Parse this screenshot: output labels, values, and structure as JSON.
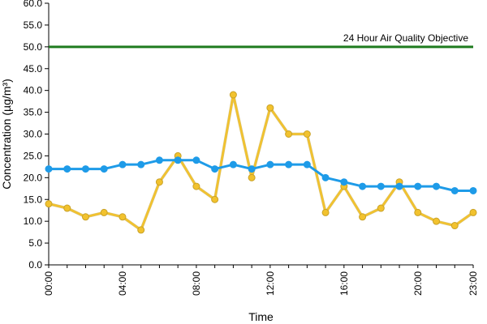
{
  "chart_data": {
    "type": "line",
    "xlabel": "Time",
    "ylabel": "Concentration (µg/m³)",
    "ylim": [
      0,
      60
    ],
    "yticks": [
      "0.0",
      "5.0",
      "10.0",
      "15.0",
      "20.0",
      "25.0",
      "30.0",
      "35.0",
      "40.0",
      "45.0",
      "50.0",
      "55.0",
      "60.0"
    ],
    "xlim": [
      0,
      23
    ],
    "x": [
      0,
      1,
      2,
      3,
      4,
      5,
      6,
      7,
      8,
      9,
      10,
      11,
      12,
      13,
      14,
      15,
      16,
      17,
      18,
      19,
      20,
      21,
      22,
      23
    ],
    "xticks": [
      {
        "x": 0,
        "label": "00:00"
      },
      {
        "x": 4,
        "label": "04:00"
      },
      {
        "x": 8,
        "label": "08:00"
      },
      {
        "x": 12,
        "label": "12:00"
      },
      {
        "x": 16,
        "label": "16:00"
      },
      {
        "x": 20,
        "label": "20:00"
      },
      {
        "x": 23,
        "label": "23:00"
      }
    ],
    "grid": false,
    "series": [
      {
        "color": "#1e9be8",
        "values": [
          22,
          22,
          22,
          22,
          23,
          23,
          24,
          24,
          24,
          22,
          23,
          22,
          23,
          23,
          23,
          20,
          19,
          18,
          18,
          18,
          18,
          18,
          17,
          17
        ]
      },
      {
        "color": "#f2c22e",
        "values": [
          14,
          13,
          11,
          12,
          11,
          8,
          19,
          25,
          18,
          15,
          39,
          20,
          36,
          30,
          30,
          12,
          18,
          11,
          13,
          19,
          12,
          10,
          9,
          12
        ]
      }
    ],
    "reference_line": {
      "value": 50,
      "label": "24 Hour Air Quality Objective",
      "color": "#1e7b1e"
    }
  }
}
